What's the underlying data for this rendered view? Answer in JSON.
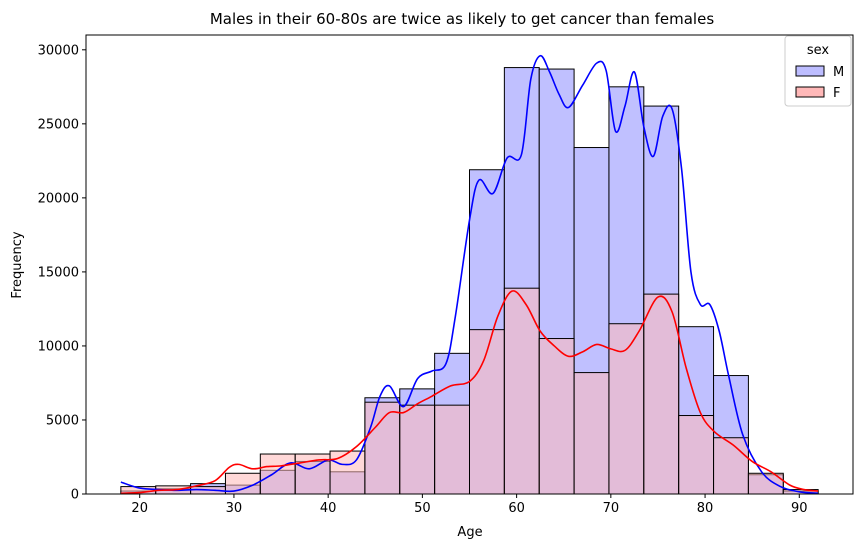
{
  "chart_data": {
    "type": "histogram",
    "title": "Males in their 60-80s are twice as likely to get cancer than females",
    "xlabel": "Age",
    "ylabel": "Frequency",
    "xlim": [
      14.3,
      95.7
    ],
    "ylim": [
      0,
      31000
    ],
    "xticks": [
      20,
      30,
      40,
      50,
      60,
      70,
      80,
      90
    ],
    "yticks": [
      0,
      5000,
      10000,
      15000,
      20000,
      25000,
      30000
    ],
    "grid": false,
    "legend": {
      "title": "sex",
      "position": "top-right"
    },
    "bins": [
      [
        18.0,
        21.7
      ],
      [
        21.7,
        25.4
      ],
      [
        25.4,
        29.1
      ],
      [
        29.1,
        32.8
      ],
      [
        32.8,
        36.5
      ],
      [
        36.5,
        40.2
      ],
      [
        40.2,
        43.9
      ],
      [
        43.9,
        47.6
      ],
      [
        47.6,
        51.3
      ],
      [
        51.3,
        55.0
      ],
      [
        55.0,
        58.7
      ],
      [
        58.7,
        62.4
      ],
      [
        62.4,
        66.1
      ],
      [
        66.1,
        69.8
      ],
      [
        69.8,
        73.5
      ],
      [
        73.5,
        77.2
      ],
      [
        77.2,
        80.9
      ],
      [
        80.9,
        84.6
      ],
      [
        84.6,
        88.3
      ],
      [
        88.3,
        92.0
      ]
    ],
    "series": [
      {
        "name": "M",
        "fill": "#bdbdff",
        "line": "#0000ff",
        "values": [
          200,
          350,
          700,
          600,
          1600,
          2200,
          1500,
          6500,
          7100,
          9500,
          21900,
          28800,
          28700,
          23400,
          27500,
          26200,
          11300,
          8000,
          1300,
          200
        ],
        "kde": [
          [
            18,
            800
          ],
          [
            20,
            400
          ],
          [
            22,
            300
          ],
          [
            24,
            250
          ],
          [
            26,
            300
          ],
          [
            28,
            250
          ],
          [
            30,
            200
          ],
          [
            32,
            600
          ],
          [
            34,
            1300
          ],
          [
            36,
            2100
          ],
          [
            38,
            1700
          ],
          [
            40,
            2300
          ],
          [
            41.5,
            2000
          ],
          [
            43,
            2300
          ],
          [
            44.5,
            4500
          ],
          [
            45.5,
            6600
          ],
          [
            46.5,
            7300
          ],
          [
            48,
            5900
          ],
          [
            49.5,
            7800
          ],
          [
            51,
            8300
          ],
          [
            52.5,
            8800
          ],
          [
            53.5,
            12000
          ],
          [
            55,
            18500
          ],
          [
            56,
            21200
          ],
          [
            57.5,
            20300
          ],
          [
            59,
            22700
          ],
          [
            60.5,
            22900
          ],
          [
            61.5,
            28000
          ],
          [
            62.5,
            29600
          ],
          [
            63.5,
            28500
          ],
          [
            64.5,
            27000
          ],
          [
            65.5,
            26100
          ],
          [
            67,
            27600
          ],
          [
            68.5,
            29100
          ],
          [
            69.5,
            28600
          ],
          [
            70.5,
            24500
          ],
          [
            71.5,
            26200
          ],
          [
            72.5,
            28500
          ],
          [
            73.5,
            24800
          ],
          [
            74.5,
            22800
          ],
          [
            75.5,
            25500
          ],
          [
            76.5,
            26000
          ],
          [
            77.5,
            22000
          ],
          [
            78.5,
            15000
          ],
          [
            79.5,
            12800
          ],
          [
            80.5,
            12800
          ],
          [
            81.5,
            11000
          ],
          [
            82.5,
            8000
          ],
          [
            84,
            4000
          ],
          [
            86,
            1500
          ],
          [
            88,
            500
          ],
          [
            90,
            150
          ],
          [
            92,
            50
          ]
        ]
      },
      {
        "name": "F",
        "fill": "#ffb8b8",
        "line": "#ff0000",
        "values": [
          500,
          550,
          500,
          1400,
          2700,
          2700,
          2900,
          6200,
          6000,
          6000,
          11100,
          13900,
          10500,
          8200,
          11500,
          13500,
          5300,
          3800,
          1400,
          300
        ],
        "kde": [
          [
            18,
            50
          ],
          [
            20,
            100
          ],
          [
            22,
            250
          ],
          [
            24,
            300
          ],
          [
            26,
            550
          ],
          [
            28,
            900
          ],
          [
            29.5,
            1800
          ],
          [
            30.5,
            2000
          ],
          [
            32,
            1700
          ],
          [
            33.5,
            1850
          ],
          [
            35,
            1900
          ],
          [
            37,
            2100
          ],
          [
            39,
            2300
          ],
          [
            41,
            2400
          ],
          [
            43,
            3200
          ],
          [
            45,
            4500
          ],
          [
            46.5,
            5500
          ],
          [
            48,
            5500
          ],
          [
            49.5,
            6100
          ],
          [
            51,
            6600
          ],
          [
            53,
            7300
          ],
          [
            55,
            7600
          ],
          [
            56.5,
            9000
          ],
          [
            58,
            12000
          ],
          [
            59.5,
            13700
          ],
          [
            61,
            12800
          ],
          [
            62.5,
            11000
          ],
          [
            64,
            10000
          ],
          [
            65.5,
            9300
          ],
          [
            67,
            9600
          ],
          [
            68.5,
            10100
          ],
          [
            70,
            9800
          ],
          [
            71.5,
            9700
          ],
          [
            73,
            11000
          ],
          [
            75,
            13300
          ],
          [
            76.5,
            12300
          ],
          [
            78,
            8500
          ],
          [
            79.5,
            5500
          ],
          [
            81,
            4200
          ],
          [
            83,
            3300
          ],
          [
            85,
            2200
          ],
          [
            87,
            1500
          ],
          [
            89,
            600
          ],
          [
            90.5,
            300
          ],
          [
            92,
            200
          ]
        ]
      }
    ]
  }
}
